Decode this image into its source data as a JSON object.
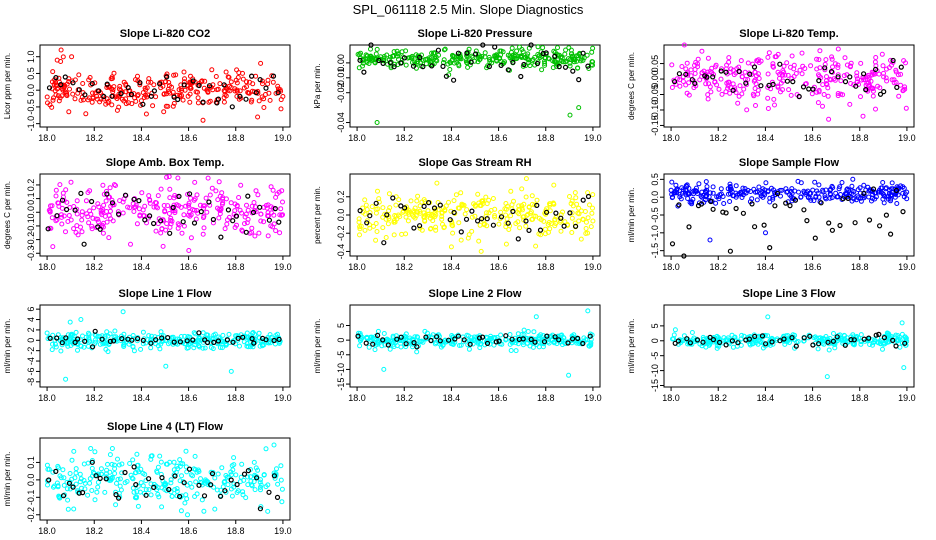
{
  "main_title": "SPL_061118  2.5 Min. Slope Diagnostics",
  "colors": {
    "red": "#ff0000",
    "green": "#00c000",
    "magenta": "#ff00ff",
    "yellow": "#ffff00",
    "blue": "#0000ff",
    "cyan": "#00ffff",
    "black": "#000000"
  },
  "chart_data": [
    {
      "type": "scatter",
      "title": "Slope Li-820 CO2",
      "ylabel": "Licor ppm per min.",
      "color": "red",
      "xlim": [
        17.97,
        19.03
      ],
      "ylim": [
        -1.1,
        1.35
      ],
      "yticks": [
        "-1.0",
        "-0.5",
        "0.0",
        "0.5",
        "1.0"
      ],
      "ytick_values": [
        -1.0,
        -0.5,
        0.0,
        0.5,
        1.0
      ],
      "xticks": [
        "18.0",
        "18.2",
        "18.4",
        "18.6",
        "18.8",
        "19.0"
      ],
      "xtick_values": [
        18.0,
        18.2,
        18.4,
        18.6,
        18.8,
        19.0
      ],
      "spread": 0.28,
      "offset": 0.0,
      "outliers_high": [
        0.9,
        1.2,
        1.0,
        0.8
      ],
      "outliers_low": [
        -0.9,
        -0.8
      ],
      "black_spread": 0.25,
      "seed": 11
    },
    {
      "type": "scatter",
      "title": "Slope Li-820 Pressure",
      "ylabel": "kPa per min.",
      "color": "green",
      "xlim": [
        17.97,
        19.03
      ],
      "ylim": [
        -0.043,
        0.012
      ],
      "yticks": [
        "-0.04",
        "-0.02",
        "-0.01",
        "0.00"
      ],
      "ytick_values": [
        -0.04,
        -0.02,
        -0.01,
        0.0
      ],
      "xticks": [
        "18.0",
        "18.2",
        "18.4",
        "18.6",
        "18.8",
        "19.0"
      ],
      "xtick_values": [
        18.0,
        18.2,
        18.4,
        18.6,
        18.8,
        19.0
      ],
      "spread": 0.003,
      "offset": 0.003,
      "outliers_high": [
        0.009,
        0.008
      ],
      "outliers_low": [
        -0.035,
        -0.03,
        -0.04
      ],
      "black_spread": 0.006,
      "seed": 23
    },
    {
      "type": "scatter",
      "title": "Slope Li-820 Temp.",
      "ylabel": "degrees C per min.",
      "color": "magenta",
      "xlim": [
        17.97,
        19.03
      ],
      "ylim": [
        -0.155,
        0.11
      ],
      "yticks": [
        "-0.15",
        "-0.10",
        "-0.05",
        "0.00",
        "0.05"
      ],
      "ytick_values": [
        -0.15,
        -0.1,
        -0.05,
        0.0,
        0.05
      ],
      "xticks": [
        "18.0",
        "18.2",
        "18.4",
        "18.6",
        "18.8",
        "19.0"
      ],
      "xtick_values": [
        18.0,
        18.2,
        18.4,
        18.6,
        18.8,
        19.0
      ],
      "spread": 0.04,
      "offset": 0.0,
      "outliers_high": [
        0.09,
        0.08
      ],
      "outliers_low": [
        -0.13,
        -0.12
      ],
      "black_spread": 0.03,
      "seed": 37
    },
    {
      "type": "scatter",
      "title": "Slope Amb. Box Temp.",
      "ylabel": "degrees C per min.",
      "color": "magenta",
      "xlim": [
        17.97,
        19.03
      ],
      "ylim": [
        -0.32,
        0.28
      ],
      "yticks": [
        "-0.3",
        "-0.2",
        "-0.1",
        "0.0",
        "0.1",
        "0.2"
      ],
      "ytick_values": [
        -0.3,
        -0.2,
        -0.1,
        0.0,
        0.1,
        0.2
      ],
      "xticks": [
        "18.0",
        "18.2",
        "18.4",
        "18.6",
        "18.8",
        "19.0"
      ],
      "xtick_values": [
        18.0,
        18.2,
        18.4,
        18.6,
        18.8,
        19.0
      ],
      "spread": 0.1,
      "offset": 0.0,
      "outliers_high": [
        0.25,
        0.22
      ],
      "outliers_low": [
        -0.28,
        -0.25
      ],
      "black_spread": 0.08,
      "seed": 41
    },
    {
      "type": "scatter",
      "title": "Slope Gas Stream RH",
      "ylabel": "percent per min.",
      "color": "yellow",
      "xlim": [
        17.97,
        19.03
      ],
      "ylim": [
        -0.45,
        0.45
      ],
      "yticks": [
        "-0.4",
        "-0.2",
        "0.0",
        "0.2"
      ],
      "ytick_values": [
        -0.4,
        -0.2,
        0.0,
        0.2
      ],
      "xticks": [
        "18.0",
        "18.2",
        "18.4",
        "18.6",
        "18.8",
        "19.0"
      ],
      "xtick_values": [
        18.0,
        18.2,
        18.4,
        18.6,
        18.8,
        19.0
      ],
      "spread": 0.12,
      "offset": 0.0,
      "outliers_high": [
        0.35,
        0.4
      ],
      "outliers_low": [
        -0.35,
        -0.4
      ],
      "black_spread": 0.12,
      "seed": 53
    },
    {
      "type": "scatter",
      "title": "Slope Sample Flow",
      "ylabel": "ml/min per min.",
      "color": "blue",
      "xlim": [
        17.97,
        19.03
      ],
      "ylim": [
        -1.65,
        0.65
      ],
      "yticks": [
        "-1.5",
        "-1.0",
        "-0.5",
        "0.0",
        "0.5"
      ],
      "ytick_values": [
        -1.5,
        -1.0,
        -0.5,
        0.0,
        0.5
      ],
      "xticks": [
        "18.0",
        "18.2",
        "18.4",
        "18.6",
        "18.8",
        "19.0"
      ],
      "xtick_values": [
        18.0,
        18.2,
        18.4,
        18.6,
        18.8,
        19.0
      ],
      "spread": 0.12,
      "offset": 0.1,
      "outliers_high": [
        0.5,
        0.4
      ],
      "outliers_low": [
        -1.2,
        -1.0
      ],
      "black_spread": 0.5,
      "black_offset": -0.5,
      "seed": 67
    },
    {
      "type": "scatter",
      "title": "Slope Line 1 Flow",
      "ylabel": "ml/min per min.",
      "color": "cyan",
      "xlim": [
        17.97,
        19.03
      ],
      "ylim": [
        -9.0,
        6.8
      ],
      "yticks": [
        "-8",
        "-6",
        "-4",
        "-2",
        "0",
        "2",
        "4",
        "6"
      ],
      "ytick_values": [
        -8,
        -6,
        -4,
        -2,
        0,
        2,
        4,
        6
      ],
      "xticks": [
        "18.0",
        "18.2",
        "18.4",
        "18.6",
        "18.8",
        "19.0"
      ],
      "xtick_values": [
        18.0,
        18.2,
        18.4,
        18.6,
        18.8,
        19.0
      ],
      "spread": 0.8,
      "offset": 0.0,
      "outliers_high": [
        5.5,
        4.0,
        3.5
      ],
      "outliers_low": [
        -7.5,
        -6.0,
        -5.0
      ],
      "black_spread": 0.6,
      "seed": 71
    },
    {
      "type": "scatter",
      "title": "Slope Line 2 Flow",
      "ylabel": "ml/min per min.",
      "color": "cyan",
      "xlim": [
        17.97,
        19.03
      ],
      "ylim": [
        -16,
        12
      ],
      "yticks": [
        "-15",
        "-10",
        "-5",
        "0",
        "5"
      ],
      "ytick_values": [
        -15,
        -10,
        -5,
        0,
        5
      ],
      "xticks": [
        "18.0",
        "18.2",
        "18.4",
        "18.6",
        "18.8",
        "19.0"
      ],
      "xtick_values": [
        18.0,
        18.2,
        18.4,
        18.6,
        18.8,
        19.0
      ],
      "spread": 1.2,
      "offset": 0.0,
      "outliers_high": [
        10,
        8
      ],
      "outliers_low": [
        -12,
        -10
      ],
      "black_spread": 1.0,
      "seed": 83
    },
    {
      "type": "scatter",
      "title": "Slope Line 3 Flow",
      "ylabel": "ml/min per min.",
      "color": "cyan",
      "xlim": [
        17.97,
        19.03
      ],
      "ylim": [
        -15.5,
        12
      ],
      "yticks": [
        "-15",
        "-10",
        "-5",
        "0",
        "5"
      ],
      "ytick_values": [
        -15,
        -10,
        -5,
        0,
        5
      ],
      "xticks": [
        "18.0",
        "18.2",
        "18.4",
        "18.6",
        "18.8",
        "19.0"
      ],
      "xtick_values": [
        18.0,
        18.2,
        18.4,
        18.6,
        18.8,
        19.0
      ],
      "spread": 1.2,
      "offset": 0.0,
      "outliers_high": [
        8,
        6
      ],
      "outliers_low": [
        -12,
        -9
      ],
      "black_spread": 1.0,
      "seed": 97
    },
    {
      "type": "scatter",
      "title": "Slope Line 4 (LT) Flow",
      "ylabel": "ml/min per min.",
      "color": "cyan",
      "xlim": [
        17.97,
        19.03
      ],
      "ylim": [
        -0.23,
        0.24
      ],
      "yticks": [
        "-0.2",
        "-0.1",
        "0.0",
        "0.1"
      ],
      "ytick_values": [
        -0.2,
        -0.1,
        0.0,
        0.1
      ],
      "xticks": [
        "18.0",
        "18.2",
        "18.4",
        "18.6",
        "18.8",
        "19.0"
      ],
      "xtick_values": [
        18.0,
        18.2,
        18.4,
        18.6,
        18.8,
        19.0
      ],
      "spread": 0.07,
      "offset": 0.0,
      "outliers_high": [
        0.2,
        0.18
      ],
      "outliers_low": [
        -0.2,
        -0.18
      ],
      "black_spread": 0.07,
      "seed": 101
    }
  ]
}
